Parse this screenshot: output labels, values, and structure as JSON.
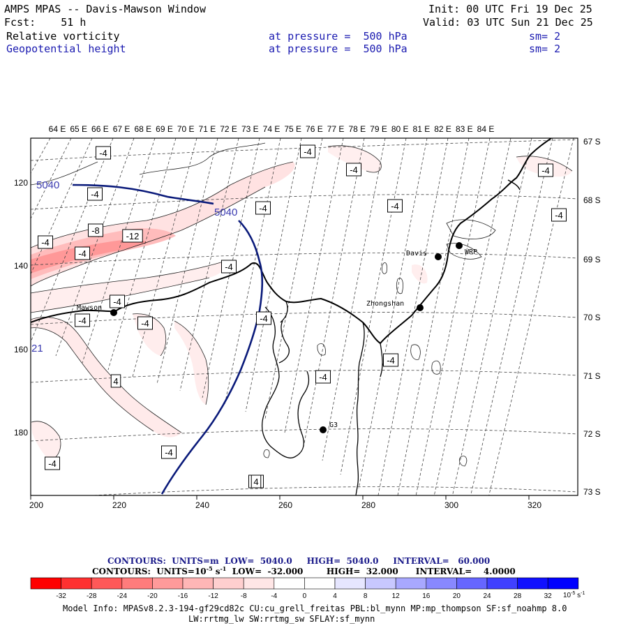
{
  "header": {
    "title": "AMPS MPAS -- Davis-Mawson Window",
    "fcst": "Fcst:    51 h",
    "init": "Init: 00 UTC Fri 19 Dec 25",
    "valid": "Valid: 03 UTC Sun 21 Dec 25",
    "field1": "Relative vorticity",
    "field1_pressure": "at pressure =  500 hPa",
    "field1_sm": "sm= 2",
    "field2": "Geopotential height",
    "field2_pressure": "at pressure =  500 hPa",
    "field2_sm": "sm= 2"
  },
  "map": {
    "lon_labels": [
      "64 E",
      "65 E",
      "66 E",
      "67 E",
      "68 E",
      "69 E",
      "70 E",
      "71 E",
      "72 E",
      "73 E",
      "74 E",
      "75 E",
      "76 E",
      "77 E",
      "78 E",
      "79 E",
      "80 E",
      "81 E",
      "82 E",
      "83 E",
      "84 E"
    ],
    "lat_labels": [
      "67 S",
      "68 S",
      "69 S",
      "70 S",
      "71 S",
      "72 S",
      "73 S"
    ],
    "x_ticks": [
      "200",
      "220",
      "240",
      "260",
      "280",
      "300",
      "320"
    ],
    "y_ticks": [
      "120",
      "140",
      "160",
      "180"
    ],
    "stations": [
      {
        "name": "Mawson"
      },
      {
        "name": "Davis"
      },
      {
        "name": "WRP"
      },
      {
        "name": "Zhongshan"
      },
      {
        "name": "G3"
      }
    ],
    "height_labels": [
      "5040",
      "5040",
      "21"
    ],
    "vort_labels": [
      "-4",
      "-4",
      "-4",
      "-4",
      "-4",
      "-4",
      "-4",
      "-4",
      "-4",
      "-8",
      "-12",
      "-4",
      "-4",
      "-4",
      "-4",
      "-4",
      "-4",
      "-4",
      "-4",
      "4",
      "-4",
      "-4",
      "-4",
      "-4",
      "4"
    ]
  },
  "footer": {
    "contour1": "CONTOURS:  UNITS=m  LOW=  5040.0     HIGH=  5040.0     INTERVAL=   60.000",
    "contour2_a": "CONTOURS:  UNITS=10",
    "contour2_exp": "-5",
    "contour2_b": " s",
    "contour2_exp2": "-1",
    "contour2_c": "  LOW=  -32.000        HIGH=  32.000      INTERVAL=    4.0000",
    "colorbar_labels": [
      "-32",
      "-28",
      "-24",
      "-20",
      "-16",
      "-12",
      "-8",
      "-4",
      "0",
      "4",
      "8",
      "12",
      "16",
      "20",
      "24",
      "28",
      "32"
    ],
    "colorbar_unit": "10",
    "colorbar_unit_exp": "-5",
    "colorbar_unit_b": " s",
    "colorbar_unit_exp2": "-1",
    "colorbar_colors": [
      "#ff0000",
      "#ff3030",
      "#ff5858",
      "#ff7c7c",
      "#ff9a9a",
      "#ffb6b6",
      "#ffcfcf",
      "#ffe6e6",
      "#ffffff",
      "#ffffff",
      "#e6e6ff",
      "#c8c8ff",
      "#a8a8ff",
      "#8888ff",
      "#6666ff",
      "#4040ff",
      "#1010ff",
      "#0000ff"
    ],
    "model_info": "Model Info: MPASv8.2.3-194-gf29cd82c CU:cu_grell_freitas PBL:bl_mynn MP:mp_thompson SF:sf_noahmp 8.0",
    "model_info2": "LW:rrtmg_lw SW:rrtmg_sw SFLAY:sf_mynn"
  }
}
